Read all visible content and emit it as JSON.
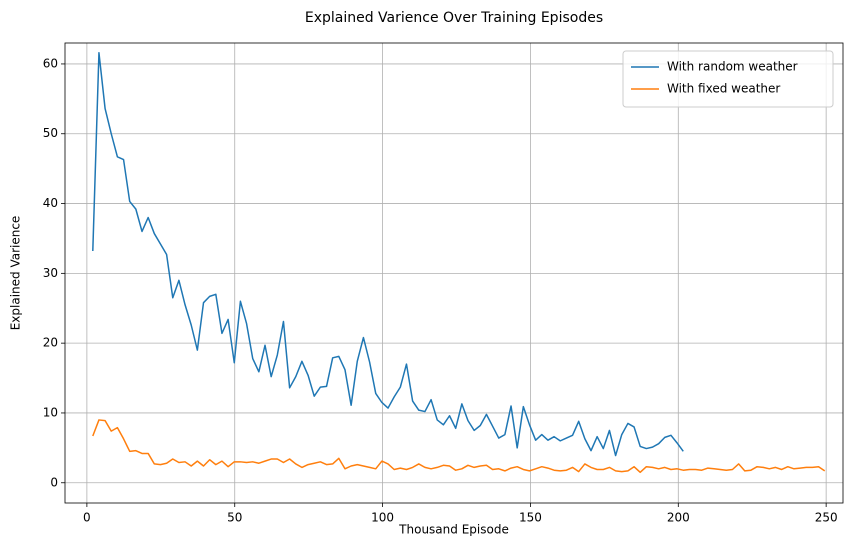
{
  "chart_data": {
    "type": "line",
    "title": "Explained Varience Over Training Episodes",
    "xlabel": "Thousand Episode",
    "ylabel": "Explained Varience",
    "xlim": [
      -7.4,
      255.7
    ],
    "ylim": [
      -2.9,
      63
    ],
    "xticks": [
      0,
      50,
      100,
      150,
      200,
      250
    ],
    "yticks": [
      0,
      10,
      20,
      30,
      40,
      50,
      60
    ],
    "grid": true,
    "legend": "upper right",
    "series": [
      {
        "name": "With random weather",
        "color": "#1f77b4",
        "x": [
          2,
          4.08,
          6.16,
          8.24,
          10.32,
          12.4,
          14.48,
          16.56,
          18.64,
          20.72,
          22.8,
          24.88,
          26.96,
          29.04,
          31.12,
          33.2,
          35.28,
          37.36,
          39.44,
          41.52,
          43.6,
          45.68,
          47.76,
          49.84,
          51.92,
          54,
          56.08,
          58.16,
          60.24,
          62.32,
          64.4,
          66.48,
          68.56,
          70.64,
          72.72,
          74.8,
          76.88,
          78.96,
          81.04,
          83.12,
          85.2,
          87.28,
          89.36,
          91.44,
          93.52,
          95.6,
          97.68,
          99.76,
          101.84,
          103.92,
          106,
          108.08,
          110.16,
          112.24,
          114.32,
          116.4,
          118.48,
          120.56,
          122.64,
          124.72,
          126.8,
          128.88,
          130.96,
          133.04,
          135.12,
          137.2,
          139.28,
          141.36,
          143.44,
          145.52,
          147.6,
          149.68,
          151.76,
          153.84,
          155.92,
          158,
          160.08,
          162.16,
          164.24,
          166.32,
          168.4,
          170.48,
          172.56,
          174.64,
          176.72,
          178.8,
          180.88,
          182.96,
          185.04,
          187.12,
          189.2,
          191.28,
          193.36,
          195.44,
          197.52,
          199.6,
          201.68
        ],
        "values": [
          33.2,
          61.6,
          53.6,
          50,
          46.7,
          46.3,
          40.3,
          39.2,
          36,
          38,
          35.7,
          34.2,
          32.7,
          26.5,
          29,
          25.5,
          22.6,
          19,
          25.8,
          26.7,
          27,
          21.4,
          23.4,
          17.2,
          26,
          22.8,
          17.8,
          15.9,
          19.7,
          15.2,
          18.3,
          23.1,
          13.6,
          15.2,
          17.4,
          15.4,
          12.4,
          13.7,
          13.8,
          17.9,
          18.1,
          16.2,
          11.1,
          17.4,
          20.8,
          17.3,
          12.8,
          11.5,
          10.7,
          12.3,
          13.7,
          17,
          11.7,
          10.4,
          10.2,
          11.9,
          9,
          8.3,
          9.6,
          7.8,
          11.3,
          8.9,
          7.5,
          8.2,
          9.8,
          8.1,
          6.4,
          6.9,
          11,
          5,
          10.9,
          8.3,
          6.1,
          6.9,
          6.1,
          6.6,
          6,
          6.4,
          6.8,
          8.8,
          6.3,
          4.6,
          6.6,
          4.9,
          7.5,
          3.9,
          6.9,
          8.5,
          8,
          5.2,
          4.9,
          5.1,
          5.6,
          6.5,
          6.8,
          5.7,
          4.5
        ]
      },
      {
        "name": "With fixed weather",
        "color": "#ff7f0e",
        "x": [
          2,
          4.08,
          6.16,
          8.24,
          10.32,
          12.4,
          14.48,
          16.56,
          18.64,
          20.72,
          22.8,
          24.88,
          26.96,
          29.04,
          31.12,
          33.2,
          35.28,
          37.36,
          39.44,
          41.52,
          43.6,
          45.68,
          47.76,
          49.84,
          51.92,
          54,
          56.08,
          58.16,
          60.24,
          62.32,
          64.4,
          66.48,
          68.56,
          70.64,
          72.72,
          74.8,
          76.88,
          78.96,
          81.04,
          83.12,
          85.2,
          87.28,
          89.36,
          91.44,
          93.52,
          95.6,
          97.68,
          99.76,
          101.84,
          103.92,
          106,
          108.08,
          110.16,
          112.24,
          114.32,
          116.4,
          118.48,
          120.56,
          122.64,
          124.72,
          126.8,
          128.88,
          130.96,
          133.04,
          135.12,
          137.2,
          139.28,
          141.36,
          143.44,
          145.52,
          147.6,
          149.68,
          151.76,
          153.84,
          155.92,
          158,
          160.08,
          162.16,
          164.24,
          166.32,
          168.4,
          170.48,
          172.56,
          174.64,
          176.72,
          178.8,
          180.88,
          182.96,
          185.04,
          187.12,
          189.2,
          191.28,
          193.36,
          195.44,
          197.52,
          199.6,
          201.68,
          203.76,
          205.84,
          207.92,
          210,
          212.08,
          214.16,
          216.24,
          218.32,
          220.4,
          222.48,
          224.56,
          226.64,
          228.72,
          230.8,
          232.88,
          234.96,
          237.04,
          239.12,
          241.2,
          243.28,
          245.36,
          247.44,
          249.52
        ],
        "values": [
          6.7,
          9,
          8.9,
          7.4,
          7.9,
          6.3,
          4.5,
          4.6,
          4.2,
          4.2,
          2.7,
          2.6,
          2.8,
          3.4,
          2.9,
          3,
          2.4,
          3.1,
          2.4,
          3.3,
          2.6,
          3.1,
          2.3,
          3,
          3,
          2.9,
          3,
          2.8,
          3.1,
          3.4,
          3.4,
          2.9,
          3.4,
          2.7,
          2.2,
          2.6,
          2.8,
          3,
          2.6,
          2.7,
          3.5,
          2,
          2.4,
          2.6,
          2.4,
          2.2,
          2,
          3.1,
          2.7,
          1.9,
          2.1,
          1.9,
          2.2,
          2.7,
          2.2,
          2,
          2.2,
          2.5,
          2.4,
          1.8,
          2,
          2.5,
          2.2,
          2.4,
          2.5,
          1.9,
          2,
          1.7,
          2.1,
          2.3,
          1.9,
          1.7,
          2,
          2.3,
          2.1,
          1.8,
          1.7,
          1.8,
          2.2,
          1.6,
          2.7,
          2.2,
          1.9,
          1.9,
          2.2,
          1.7,
          1.6,
          1.7,
          2.3,
          1.5,
          2.3,
          2.2,
          2,
          2.2,
          1.9,
          2,
          1.8,
          1.9,
          1.9,
          1.8,
          2.1,
          2,
          1.9,
          1.8,
          1.9,
          2.7,
          1.7,
          1.8,
          2.3,
          2.2,
          2,
          2.2,
          1.9,
          2.3,
          2,
          2.1,
          2.2,
          2.2,
          2.3,
          1.7
        ]
      }
    ]
  }
}
